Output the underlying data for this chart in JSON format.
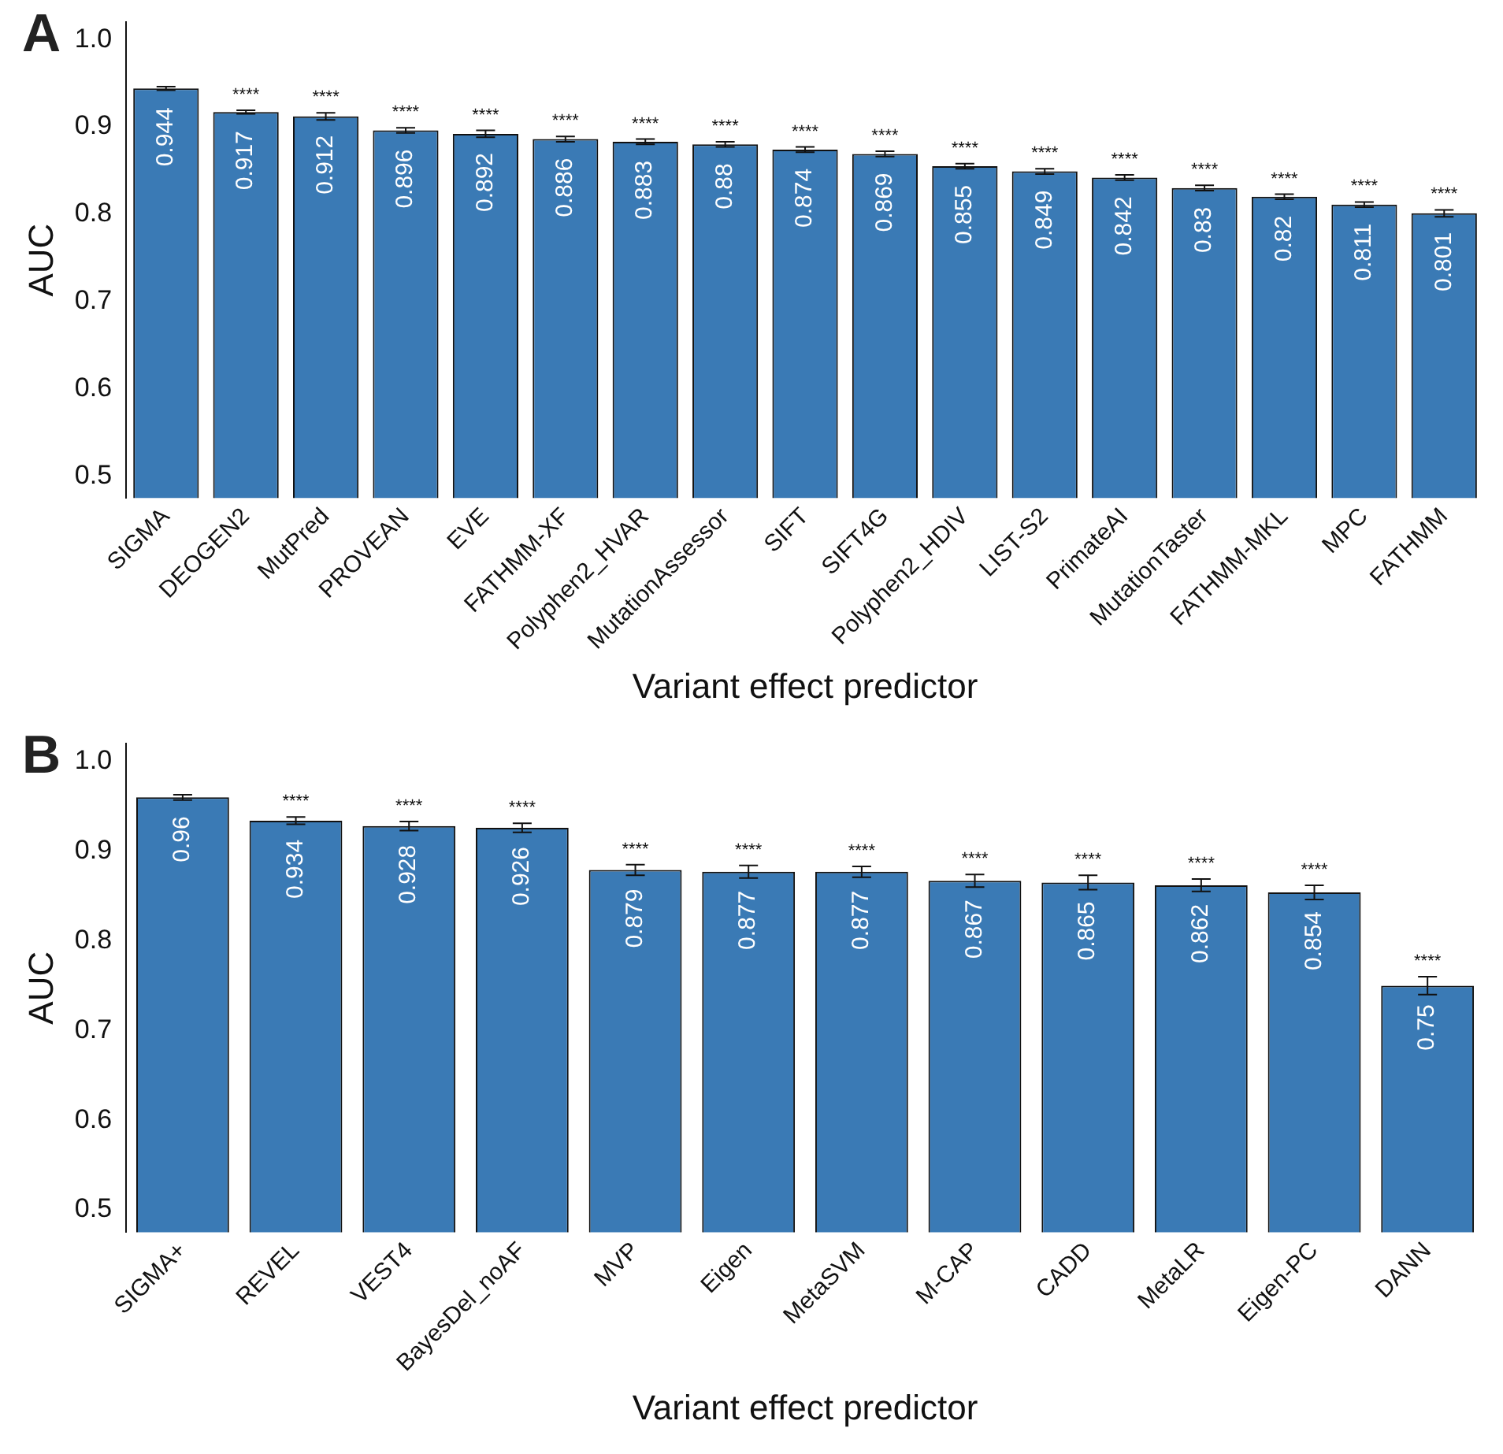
{
  "chart_data": [
    {
      "type": "bar",
      "title": "A",
      "xlabel": "Variant effect predictor",
      "ylabel": "AUC",
      "categories": [
        "SIGMA",
        "DEOGEN2",
        "MutPred",
        "PROVEAN",
        "EVE",
        "FATHMM-XF",
        "Polyphen2_HVAR",
        "MutationAssessor",
        "SIFT",
        "SIFT4G",
        "Polyphen2_HDIV",
        "LIST-S2",
        "PrimateAI",
        "MutationTaster",
        "FATHMM-MKL",
        "MPC",
        "FATHMM"
      ],
      "values": [
        0.944,
        0.917,
        0.912,
        0.896,
        0.892,
        0.886,
        0.883,
        0.88,
        0.874,
        0.869,
        0.855,
        0.849,
        0.842,
        0.83,
        0.82,
        0.811,
        0.801
      ],
      "errors": [
        0.002,
        0.002,
        0.004,
        0.003,
        0.004,
        0.003,
        0.003,
        0.003,
        0.003,
        0.003,
        0.003,
        0.003,
        0.003,
        0.003,
        0.003,
        0.003,
        0.004
      ],
      "color": "#3a7ab5",
      "data_labels": true,
      "ylim": [
        0.475,
        1.02
      ],
      "yticks": [
        0.5,
        0.6,
        0.7,
        0.8,
        0.9,
        {
          "value": 1,
          "label": "1.0"
        }
      ],
      "grid": false,
      "legend": false,
      "annotations": [
        {
          "text": "****",
          "x": "DEOGEN2",
          "y": 0.919
        },
        {
          "text": "****",
          "x": "MutPred",
          "y": 0.916
        },
        {
          "text": "****",
          "x": "PROVEAN",
          "y": 0.899
        },
        {
          "text": "****",
          "x": "EVE",
          "y": 0.896
        },
        {
          "text": "****",
          "x": "FATHMM-XF",
          "y": 0.889
        },
        {
          "text": "****",
          "x": "Polyphen2_HVAR",
          "y": 0.886
        },
        {
          "text": "****",
          "x": "MutationAssessor",
          "y": 0.883
        },
        {
          "text": "****",
          "x": "SIFT",
          "y": 0.877
        },
        {
          "text": "****",
          "x": "SIFT4G",
          "y": 0.872
        },
        {
          "text": "****",
          "x": "Polyphen2_HDIV",
          "y": 0.858
        },
        {
          "text": "****",
          "x": "LIST-S2",
          "y": 0.852
        },
        {
          "text": "****",
          "x": "PrimateAI",
          "y": 0.845
        },
        {
          "text": "****",
          "x": "MutationTaster",
          "y": 0.833
        },
        {
          "text": "****",
          "x": "FATHMM-MKL",
          "y": 0.823
        },
        {
          "text": "****",
          "x": "MPC",
          "y": 0.814
        },
        {
          "text": "****",
          "x": "FATHMM",
          "y": 0.805
        }
      ]
    },
    {
      "type": "bar",
      "title": "B",
      "xlabel": "Variant effect predictor",
      "ylabel": "AUC",
      "categories": [
        "SIGMA+",
        "REVEL",
        "VEST4",
        "BayesDel_noAF",
        "MVP",
        "Eigen",
        "MetaSVM",
        "M-CAP",
        "CADD",
        "MetaLR",
        "Eigen-PC",
        "DANN"
      ],
      "values": [
        0.96,
        0.934,
        0.928,
        0.926,
        0.879,
        0.877,
        0.877,
        0.867,
        0.865,
        0.862,
        0.854,
        0.75
      ],
      "errors": [
        0.003,
        0.004,
        0.005,
        0.005,
        0.006,
        0.007,
        0.006,
        0.007,
        0.008,
        0.007,
        0.008,
        0.01
      ],
      "color": "#3a7ab5",
      "data_labels": true,
      "ylim": [
        0.475,
        1.02
      ],
      "yticks": [
        0.5,
        0.6,
        0.7,
        0.8,
        0.9,
        {
          "value": 1,
          "label": "1.0"
        }
      ],
      "grid": false,
      "legend": false,
      "annotations": [
        {
          "text": "****",
          "x": "REVEL",
          "y": 0.938
        },
        {
          "text": "****",
          "x": "VEST4",
          "y": 0.933
        },
        {
          "text": "****",
          "x": "BayesDel_noAF",
          "y": 0.931
        },
        {
          "text": "****",
          "x": "MVP",
          "y": 0.885
        },
        {
          "text": "****",
          "x": "Eigen",
          "y": 0.884
        },
        {
          "text": "****",
          "x": "MetaSVM",
          "y": 0.883
        },
        {
          "text": "****",
          "x": "M-CAP",
          "y": 0.874
        },
        {
          "text": "****",
          "x": "CADD",
          "y": 0.873
        },
        {
          "text": "****",
          "x": "MetaLR",
          "y": 0.869
        },
        {
          "text": "****",
          "x": "Eigen-PC",
          "y": 0.862
        },
        {
          "text": "****",
          "x": "DANN",
          "y": 0.76
        }
      ]
    }
  ]
}
